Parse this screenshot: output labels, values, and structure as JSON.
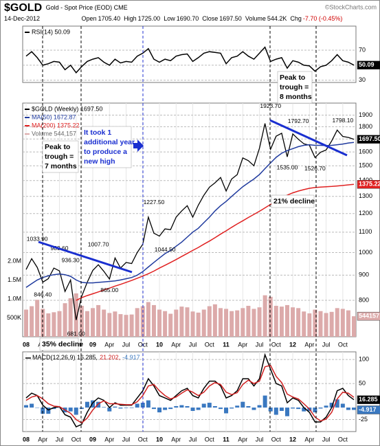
{
  "header": {
    "symbol": "$GOLD",
    "description": "Gold - Spot Price (EOD) CME",
    "copyright": "©StockCharts.com",
    "date": "14-Dec-2012",
    "quote": [
      {
        "label": "Open",
        "value": "1705.40"
      },
      {
        "label": "High",
        "value": "1725.00"
      },
      {
        "label": "Low",
        "value": "1690.70"
      },
      {
        "label": "Close",
        "value": "1697.50"
      },
      {
        "label": "Volume",
        "value": "544.2K"
      },
      {
        "label": "Chg",
        "value": "-7.70 (-0.45%)"
      }
    ]
  },
  "chart_data": [
    {
      "type": "line",
      "legend_inline": false,
      "x": [
        "2008-01",
        "2008-02",
        "2008-03",
        "2008-04",
        "2008-05",
        "2008-06",
        "2008-07",
        "2008-08",
        "2008-09",
        "2008-10",
        "2008-11",
        "2008-12",
        "2009-01",
        "2009-02",
        "2009-03",
        "2009-04",
        "2009-05",
        "2009-06",
        "2009-07",
        "2009-08",
        "2009-09",
        "2009-10",
        "2009-11",
        "2009-12",
        "2010-01",
        "2010-02",
        "2010-03",
        "2010-04",
        "2010-05",
        "2010-06",
        "2010-07",
        "2010-08",
        "2010-09",
        "2010-10",
        "2010-11",
        "2010-12",
        "2011-01",
        "2011-02",
        "2011-03",
        "2011-04",
        "2011-05",
        "2011-06",
        "2011-07",
        "2011-08",
        "2011-09",
        "2011-10",
        "2011-11",
        "2011-12",
        "2012-01",
        "2012-02",
        "2012-03",
        "2012-04",
        "2012-05",
        "2012-06",
        "2012-07",
        "2012-08",
        "2012-09",
        "2012-10",
        "2012-11",
        "2012-12"
      ],
      "xlim": [
        "2008-01",
        "2012-12"
      ],
      "series": [
        {
          "name": "RSI(14) 50.09",
          "color": "#000000",
          "end_label": "50.09",
          "values": [
            62,
            68,
            60,
            50,
            52,
            55,
            54,
            44,
            50,
            40,
            48,
            55,
            58,
            60,
            54,
            50,
            58,
            53,
            55,
            54,
            62,
            66,
            72,
            58,
            54,
            58,
            56,
            62,
            64,
            65,
            55,
            60,
            66,
            68,
            67,
            66,
            52,
            60,
            62,
            68,
            62,
            58,
            66,
            74,
            55,
            58,
            60,
            46,
            56,
            54,
            50,
            49,
            42,
            48,
            50,
            56,
            64,
            56,
            54,
            50.09
          ]
        }
      ],
      "ylim": [
        27,
        102
      ],
      "yticks": [
        30,
        50,
        70
      ]
    },
    {
      "type": "line",
      "log_scale": true,
      "legend_inline": false,
      "x": [
        "2008-01",
        "2008-02",
        "2008-03",
        "2008-04",
        "2008-05",
        "2008-06",
        "2008-07",
        "2008-08",
        "2008-09",
        "2008-10",
        "2008-11",
        "2008-12",
        "2009-01",
        "2009-02",
        "2009-03",
        "2009-04",
        "2009-05",
        "2009-06",
        "2009-07",
        "2009-08",
        "2009-09",
        "2009-10",
        "2009-11",
        "2009-12",
        "2010-01",
        "2010-02",
        "2010-03",
        "2010-04",
        "2010-05",
        "2010-06",
        "2010-07",
        "2010-08",
        "2010-09",
        "2010-10",
        "2010-11",
        "2010-12",
        "2011-01",
        "2011-02",
        "2011-03",
        "2011-04",
        "2011-05",
        "2011-06",
        "2011-07",
        "2011-08",
        "2011-09",
        "2011-10",
        "2011-11",
        "2011-12",
        "2012-01",
        "2012-02",
        "2012-03",
        "2012-04",
        "2012-05",
        "2012-06",
        "2012-07",
        "2012-08",
        "2012-09",
        "2012-10",
        "2012-11",
        "2012-12"
      ],
      "xlim": [
        "2008-01",
        "2012-12"
      ],
      "xticks": [
        {
          "value": "2008-01",
          "label": "08"
        },
        {
          "value": "2008-04",
          "label": "Apr"
        },
        {
          "value": "2008-07",
          "label": "Jul"
        },
        {
          "value": "2008-10",
          "label": "Oct"
        },
        {
          "value": "2009-01",
          "label": "09"
        },
        {
          "value": "2009-04",
          "label": "Apr"
        },
        {
          "value": "2009-07",
          "label": "Jul"
        },
        {
          "value": "2009-10",
          "label": "Oct"
        },
        {
          "value": "2010-01",
          "label": "10"
        },
        {
          "value": "2010-04",
          "label": "Apr"
        },
        {
          "value": "2010-07",
          "label": "Jul"
        },
        {
          "value": "2010-10",
          "label": "Oct"
        },
        {
          "value": "2011-01",
          "label": "11"
        },
        {
          "value": "2011-04",
          "label": "Apr"
        },
        {
          "value": "2011-07",
          "label": "Jul"
        },
        {
          "value": "2011-10",
          "label": "Oct"
        },
        {
          "value": "2012-01",
          "label": "12"
        },
        {
          "value": "2012-04",
          "label": "Apr"
        },
        {
          "value": "2012-07",
          "label": "Jul"
        },
        {
          "value": "2012-10",
          "label": "Oct"
        }
      ],
      "series": [
        {
          "name": "Volume 544,157",
          "type": "bar",
          "axis": "y2",
          "color": "#dcaaaa",
          "end_label": "544157",
          "values": [
            720000,
            810000,
            980000,
            740000,
            620000,
            650000,
            680000,
            890000,
            1020000,
            1150000,
            820000,
            680000,
            760000,
            840000,
            720000,
            630000,
            670000,
            600000,
            580000,
            590000,
            760000,
            810000,
            920000,
            840000,
            720000,
            680000,
            610000,
            720000,
            800000,
            780000,
            670000,
            640000,
            720000,
            810000,
            860000,
            760000,
            740000,
            680000,
            700000,
            760000,
            820000,
            740000,
            780000,
            1100000,
            1060000,
            820000,
            800000,
            840000,
            780000,
            760000,
            670000,
            620000,
            720000,
            680000,
            630000,
            660000,
            760000,
            740000,
            700000,
            544157
          ]
        },
        {
          "name": "$GOLD (Weekly) 1697.50",
          "color": "#000000",
          "end_label": "1697.50",
          "values": [
            924,
            972,
            933,
            871,
            885,
            930,
            918,
            834,
            880,
            730,
            815,
            870,
            920,
            945,
            916,
            884,
            975,
            930,
            955,
            950,
            1000,
            1040,
            1180,
            1095,
            1080,
            1117,
            1113,
            1180,
            1215,
            1245,
            1180,
            1248,
            1307,
            1357,
            1385,
            1420,
            1333,
            1410,
            1439,
            1556,
            1536,
            1500,
            1628,
            1828,
            1620,
            1722,
            1746,
            1564,
            1740,
            1697,
            1662,
            1651,
            1559,
            1598,
            1615,
            1684,
            1772,
            1720,
            1712,
            1697.5
          ]
        },
        {
          "name": "MA(50) 1672.87",
          "color": "#1f3a9e",
          "values": [
            850,
            865,
            880,
            890,
            897,
            902,
            905,
            902,
            895,
            880,
            870,
            868,
            868,
            870,
            872,
            874,
            876,
            880,
            885,
            890,
            900,
            915,
            935,
            955,
            975,
            995,
            1010,
            1030,
            1050,
            1075,
            1100,
            1120,
            1150,
            1180,
            1215,
            1245,
            1270,
            1300,
            1330,
            1360,
            1385,
            1410,
            1440,
            1480,
            1520,
            1560,
            1590,
            1610,
            1625,
            1640,
            1650,
            1655,
            1650,
            1650,
            1648,
            1650,
            1655,
            1660,
            1668,
            1672.87
          ]
        },
        {
          "name": "MA(200) 1375.22",
          "color": "#e02020",
          "end_label": "1375.22",
          "values": [
            null,
            null,
            null,
            null,
            null,
            null,
            null,
            null,
            null,
            800,
            810,
            818,
            825,
            832,
            840,
            847,
            855,
            862,
            870,
            878,
            887,
            896,
            906,
            917,
            930,
            942,
            955,
            968,
            982,
            996,
            1010,
            1024,
            1040,
            1055,
            1072,
            1090,
            1107,
            1125,
            1143,
            1160,
            1178,
            1195,
            1213,
            1232,
            1252,
            1272,
            1290,
            1308,
            1322,
            1333,
            1342,
            1350,
            1355,
            1358,
            1360,
            1362,
            1365,
            1368,
            1372,
            1375.22
          ]
        }
      ],
      "ylim": [
        675,
        2010
      ],
      "yticks": [
        800,
        900,
        1000,
        1100,
        1200,
        1300,
        1400,
        1500,
        1600,
        1700,
        1800,
        1900
      ],
      "y2lim": [
        0,
        6200000
      ],
      "y2ticks": [
        {
          "value": 500000,
          "label": "500K"
        },
        {
          "value": 1000000,
          "label": "1.0M"
        },
        {
          "value": 1500000,
          "label": "1.5M"
        },
        {
          "value": 2000000,
          "label": "2.0M"
        }
      ],
      "annotations": [
        {
          "x": "2008-03",
          "value": 1033.9,
          "label": "1033.90"
        },
        {
          "x": "2008-07",
          "value": 989.6,
          "label": "989.60"
        },
        {
          "x": "2008-09",
          "value": 936.3,
          "label": "936.30"
        },
        {
          "x": "2008-04",
          "value": 846.4,
          "label": "846.40"
        },
        {
          "x": "2008-10",
          "value": 681,
          "label": "681.00"
        },
        {
          "x": "2009-02",
          "value": 1007.7,
          "label": "1007.70"
        },
        {
          "x": "2009-04",
          "value": 865,
          "label": "865.00"
        },
        {
          "x": "2009-12",
          "value": 1227.5,
          "label": "1227.50"
        },
        {
          "x": "2010-02",
          "value": 1044.5,
          "label": "1044.50"
        },
        {
          "x": "2011-09",
          "value": 1923.7,
          "label": "1923.70"
        },
        {
          "x": "2011-12",
          "value": 1535,
          "label": "1535.00"
        },
        {
          "x": "2012-02",
          "value": 1792.7,
          "label": "1792.70"
        },
        {
          "x": "2012-05",
          "value": 1526.7,
          "label": "1526.70"
        },
        {
          "x": "2012-10",
          "value": 1798.1,
          "label": "1798.10"
        }
      ]
    },
    {
      "type": "line",
      "legend_inline": true,
      "x": [
        "2008-01",
        "2008-02",
        "2008-03",
        "2008-04",
        "2008-05",
        "2008-06",
        "2008-07",
        "2008-08",
        "2008-09",
        "2008-10",
        "2008-11",
        "2008-12",
        "2009-01",
        "2009-02",
        "2009-03",
        "2009-04",
        "2009-05",
        "2009-06",
        "2009-07",
        "2009-08",
        "2009-09",
        "2009-10",
        "2009-11",
        "2009-12",
        "2010-01",
        "2010-02",
        "2010-03",
        "2010-04",
        "2010-05",
        "2010-06",
        "2010-07",
        "2010-08",
        "2010-09",
        "2010-10",
        "2010-11",
        "2010-12",
        "2011-01",
        "2011-02",
        "2011-03",
        "2011-04",
        "2011-05",
        "2011-06",
        "2011-07",
        "2011-08",
        "2011-09",
        "2011-10",
        "2011-11",
        "2011-12",
        "2012-01",
        "2012-02",
        "2012-03",
        "2012-04",
        "2012-05",
        "2012-06",
        "2012-07",
        "2012-08",
        "2012-09",
        "2012-10",
        "2012-11",
        "2012-12"
      ],
      "xlim": [
        "2008-01",
        "2012-12"
      ],
      "xticks": [
        {
          "value": "2008-01",
          "label": "08"
        },
        {
          "value": "2008-04",
          "label": "Apr"
        },
        {
          "value": "2008-07",
          "label": "Jul"
        },
        {
          "value": "2008-10",
          "label": "Oct"
        },
        {
          "value": "2009-01",
          "label": "09"
        },
        {
          "value": "2009-04",
          "label": "Apr"
        },
        {
          "value": "2009-07",
          "label": "Jul"
        },
        {
          "value": "2009-10",
          "label": "Oct"
        },
        {
          "value": "2010-01",
          "label": "10"
        },
        {
          "value": "2010-04",
          "label": "Apr"
        },
        {
          "value": "2010-07",
          "label": "Jul"
        },
        {
          "value": "2010-10",
          "label": "Oct"
        },
        {
          "value": "2011-01",
          "label": "11"
        },
        {
          "value": "2011-04",
          "label": "Apr"
        },
        {
          "value": "2011-07",
          "label": "Jul"
        },
        {
          "value": "2011-10",
          "label": "Oct"
        },
        {
          "value": "2012-01",
          "label": "12"
        },
        {
          "value": "2012-04",
          "label": "Apr"
        },
        {
          "value": "2012-07",
          "label": "Jul"
        },
        {
          "value": "2012-10",
          "label": "Oct"
        }
      ],
      "series": [
        {
          "name": "-4.917",
          "type": "bar",
          "color": "#3a78c0",
          "end_label": "-4.917",
          "values": [
            5,
            8,
            0,
            -13,
            -13,
            -3,
            0,
            -10,
            -8,
            -15,
            -3,
            12,
            15,
            12,
            1,
            -8,
            2,
            -2,
            -1,
            -1,
            8,
            10,
            15,
            -3,
            -10,
            -5,
            -3,
            3,
            5,
            3,
            -7,
            -5,
            8,
            10,
            3,
            -3,
            -12,
            -2,
            4,
            12,
            3,
            -5,
            5,
            25,
            -8,
            -15,
            -7,
            -18,
            -2,
            -3,
            -8,
            -7,
            -10,
            -2,
            4,
            10,
            17,
            8,
            -5,
            -4.917
          ]
        },
        {
          "name": "MACD(12,26,9) 16.285,",
          "color": "#000000",
          "end_label": "16.285",
          "values": [
            20,
            30,
            25,
            5,
            -5,
            0,
            2,
            -15,
            -20,
            -40,
            -35,
            -10,
            10,
            20,
            15,
            0,
            10,
            5,
            5,
            5,
            20,
            35,
            60,
            45,
            25,
            20,
            15,
            25,
            35,
            40,
            25,
            20,
            40,
            55,
            55,
            45,
            20,
            25,
            35,
            60,
            60,
            45,
            60,
            110,
            80,
            50,
            45,
            10,
            20,
            15,
            0,
            -10,
            -30,
            -30,
            -20,
            0,
            35,
            40,
            25,
            16.285
          ]
        },
        {
          "name": "21.202,",
          "color": "#d02020",
          "values": [
            15,
            22,
            25,
            18,
            8,
            3,
            2,
            -5,
            -12,
            -25,
            -32,
            -22,
            -5,
            8,
            14,
            8,
            8,
            7,
            6,
            6,
            12,
            25,
            45,
            48,
            35,
            25,
            18,
            22,
            30,
            37,
            32,
            25,
            32,
            45,
            52,
            48,
            32,
            27,
            31,
            48,
            57,
            50,
            55,
            85,
            88,
            65,
            52,
            28,
            22,
            18,
            8,
            -3,
            -20,
            -28,
            -24,
            -10,
            18,
            32,
            30,
            21.202
          ]
        }
      ],
      "ylim": [
        -50,
        116
      ],
      "yticks": [
        -25,
        50,
        100
      ]
    }
  ],
  "callouts": [
    {
      "lines": [
        "Peak to",
        "trough =",
        "7 months"
      ]
    },
    {
      "lines": [
        "It took 1",
        "additional year",
        "to produce a",
        "new high"
      ]
    },
    {
      "lines": [
        "Peak to",
        "trough =",
        "8 months"
      ]
    },
    {
      "lines": [
        "21% decline"
      ]
    },
    {
      "lines": [
        "35% decline"
      ]
    }
  ]
}
